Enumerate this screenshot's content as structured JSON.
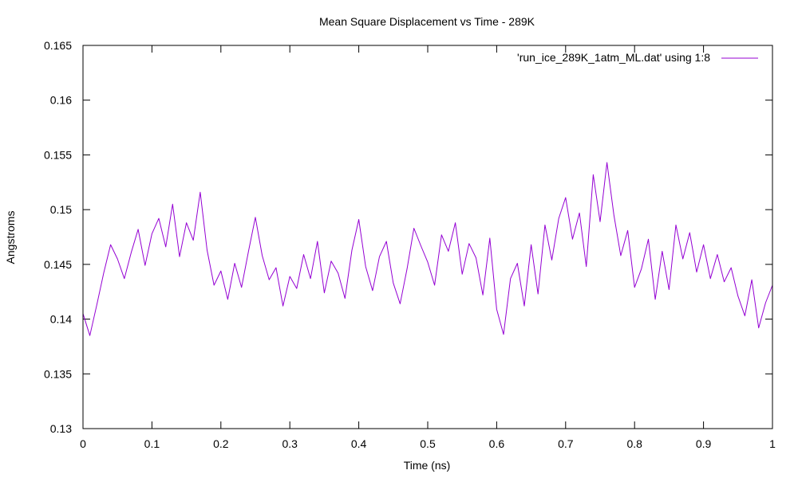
{
  "chart_data": {
    "type": "line",
    "title": "Mean Square Displacement vs Time - 289K",
    "xlabel": "Time (ns)",
    "ylabel": "Angstroms",
    "xlim": [
      0,
      1
    ],
    "ylim": [
      0.13,
      0.165
    ],
    "x_ticks": [
      "0",
      "0.1",
      "0.2",
      "0.3",
      "0.4",
      "0.5",
      "0.6",
      "0.7",
      "0.8",
      "0.9",
      "1"
    ],
    "y_ticks": [
      "0.13",
      "0.135",
      "0.14",
      "0.145",
      "0.15",
      "0.155",
      "0.16",
      "0.165"
    ],
    "grid": false,
    "legend_position": "top-right",
    "series": [
      {
        "name": "'run_ice_289K_1atm_ML.dat' using 1:8",
        "color": "#9400d3",
        "x": [
          0,
          0.01,
          0.02,
          0.03,
          0.04,
          0.05,
          0.06,
          0.07,
          0.08,
          0.09,
          0.1,
          0.11,
          0.12,
          0.13,
          0.14,
          0.15,
          0.16,
          0.17,
          0.18,
          0.19,
          0.2,
          0.21,
          0.22,
          0.23,
          0.24,
          0.25,
          0.26,
          0.27,
          0.28,
          0.29,
          0.3,
          0.31,
          0.32,
          0.33,
          0.34,
          0.35,
          0.36,
          0.37,
          0.38,
          0.39,
          0.4,
          0.41,
          0.42,
          0.43,
          0.44,
          0.45,
          0.46,
          0.47,
          0.48,
          0.49,
          0.5,
          0.51,
          0.52,
          0.53,
          0.54,
          0.55,
          0.56,
          0.57,
          0.58,
          0.59,
          0.6,
          0.61,
          0.62,
          0.63,
          0.64,
          0.65,
          0.66,
          0.67,
          0.68,
          0.69,
          0.7,
          0.71,
          0.72,
          0.73,
          0.74,
          0.75,
          0.76,
          0.77,
          0.78,
          0.79,
          0.8,
          0.81,
          0.82,
          0.83,
          0.84,
          0.85,
          0.86,
          0.87,
          0.88,
          0.89,
          0.9,
          0.91,
          0.92,
          0.93,
          0.94,
          0.95,
          0.96,
          0.97,
          0.98,
          0.99,
          1.0
        ],
        "values": [
          0.1405,
          0.1385,
          0.1413,
          0.1442,
          0.1468,
          0.1455,
          0.1437,
          0.1461,
          0.1482,
          0.1449,
          0.1478,
          0.1492,
          0.1466,
          0.1505,
          0.1457,
          0.1488,
          0.1472,
          0.1516,
          0.1463,
          0.1431,
          0.1444,
          0.1418,
          0.1451,
          0.1429,
          0.1462,
          0.1493,
          0.1458,
          0.1436,
          0.1447,
          0.1412,
          0.1439,
          0.1428,
          0.1459,
          0.1437,
          0.1471,
          0.1424,
          0.1453,
          0.1442,
          0.1419,
          0.1463,
          0.1491,
          0.1448,
          0.1426,
          0.1457,
          0.1471,
          0.1433,
          0.1414,
          0.1446,
          0.1483,
          0.1467,
          0.1452,
          0.1431,
          0.1477,
          0.1462,
          0.1488,
          0.1441,
          0.1469,
          0.1456,
          0.1422,
          0.1474,
          0.1409,
          0.1386,
          0.1437,
          0.1451,
          0.1412,
          0.1468,
          0.1423,
          0.1486,
          0.1454,
          0.1492,
          0.1511,
          0.1473,
          0.1497,
          0.1448,
          0.1532,
          0.1489,
          0.1543,
          0.1495,
          0.1458,
          0.1481,
          0.1429,
          0.1446,
          0.1473,
          0.1418,
          0.1462,
          0.1427,
          0.1486,
          0.1455,
          0.1479,
          0.1443,
          0.1468,
          0.1437,
          0.1459,
          0.1434,
          0.1447,
          0.1421,
          0.1403,
          0.1436,
          0.1392,
          0.1415,
          0.1431
        ]
      }
    ]
  }
}
